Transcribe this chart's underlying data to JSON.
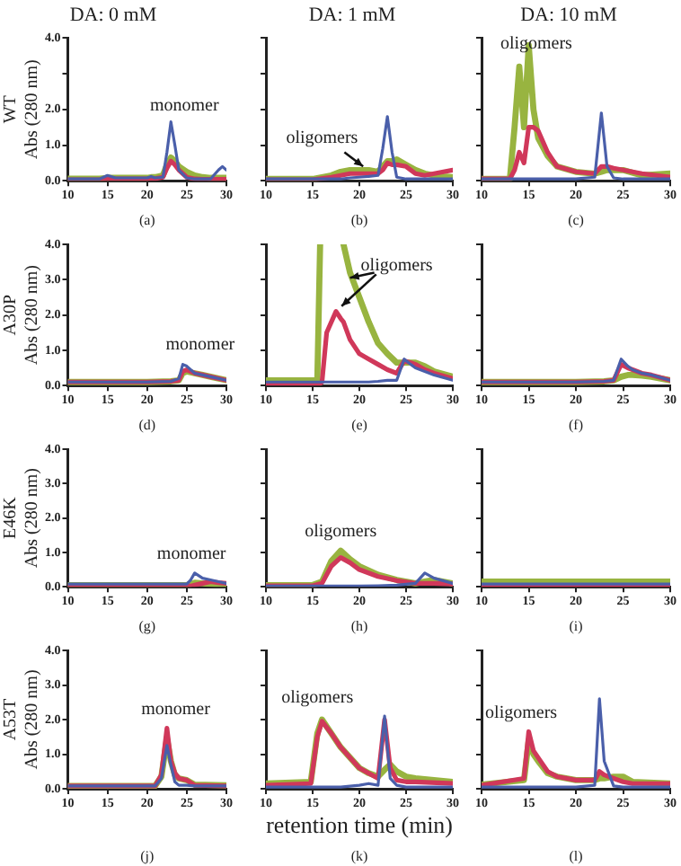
{
  "chart_data": [
    {
      "type": "line",
      "title": "DA: 0 mM",
      "ylabel": "WT\nAbs (280 nm)",
      "annotations": [
        "monomer",
        "(a)"
      ],
      "xlim": [
        10,
        30
      ],
      "ylim": [
        0,
        4
      ],
      "xticks": [
        10,
        15,
        20,
        25,
        30
      ],
      "yticks": [
        {
          "value": 0,
          "label": "0.0"
        },
        {
          "value": 1,
          "label": "1.0"
        },
        {
          "value": 2,
          "label": "2.0"
        },
        {
          "value": 3,
          "label": null
        },
        {
          "value": 4,
          "label": "4.0"
        }
      ],
      "grid": false,
      "legend": false,
      "x": [
        10,
        14,
        15,
        16,
        20,
        20.5,
        21,
        22,
        22.5,
        23,
        23.5,
        24,
        25,
        26,
        27,
        28,
        29,
        29.5,
        30
      ],
      "series": [
        {
          "color": "#4a5faa",
          "values": [
            0.05,
            0.05,
            0.15,
            0.08,
            0.08,
            0.12,
            0.08,
            0.1,
            0.8,
            1.65,
            1.0,
            0.3,
            0.08,
            0.05,
            0.05,
            0.05,
            0.3,
            0.4,
            0.3
          ]
        },
        {
          "color": "#d0385a",
          "values": [
            0.03,
            0.03,
            0.05,
            0.05,
            0.05,
            0.06,
            0.06,
            0.1,
            0.35,
            0.55,
            0.45,
            0.3,
            0.1,
            0.05,
            0.04,
            0.04,
            0.04,
            0.04,
            0.04
          ]
        },
        {
          "color": "#98b440",
          "values": [
            0.06,
            0.06,
            0.08,
            0.08,
            0.08,
            0.1,
            0.1,
            0.15,
            0.45,
            0.65,
            0.55,
            0.4,
            0.25,
            0.15,
            0.1,
            0.08,
            0.08,
            0.08,
            0.08
          ]
        }
      ]
    },
    {
      "type": "line",
      "title": "DA: 1 mM",
      "annotations": [
        "oligomers",
        "(b)"
      ],
      "xlim": [
        10,
        30
      ],
      "ylim": [
        0,
        4
      ],
      "xticks": [
        10,
        15,
        20,
        25,
        30
      ],
      "yticks": [
        0,
        1,
        2,
        3,
        4
      ],
      "tick_labels": "x",
      "grid": false,
      "legend": false,
      "x": [
        10,
        15,
        17,
        18,
        19,
        20,
        21,
        22,
        22.5,
        23,
        23.5,
        24,
        25,
        26,
        27,
        28,
        29,
        30
      ],
      "series": [
        {
          "color": "#4a5faa",
          "values": [
            0.05,
            0.05,
            0.05,
            0.05,
            0.08,
            0.1,
            0.12,
            0.15,
            0.9,
            1.8,
            0.8,
            0.1,
            0.05,
            0.05,
            0.05,
            0.05,
            0.05,
            0.05
          ]
        },
        {
          "color": "#d0385a",
          "values": [
            0.03,
            0.03,
            0.1,
            0.15,
            0.2,
            0.2,
            0.2,
            0.2,
            0.3,
            0.5,
            0.45,
            0.45,
            0.4,
            0.2,
            0.15,
            0.2,
            0.25,
            0.3
          ]
        },
        {
          "color": "#98b440",
          "values": [
            0.05,
            0.05,
            0.15,
            0.25,
            0.3,
            0.3,
            0.3,
            0.25,
            0.4,
            0.55,
            0.55,
            0.6,
            0.45,
            0.3,
            0.2,
            0.15,
            0.12,
            0.1
          ]
        }
      ]
    },
    {
      "type": "line",
      "title": "DA: 10 mM",
      "annotations": [
        "oligomers",
        "(c)"
      ],
      "xlim": [
        10,
        30
      ],
      "ylim": [
        0,
        4
      ],
      "xticks": [
        10,
        15,
        20,
        25,
        30
      ],
      "yticks": [
        0,
        1,
        2,
        3,
        4
      ],
      "tick_labels": "x",
      "grid": false,
      "legend": false,
      "x": [
        10,
        13,
        13.5,
        14,
        14.5,
        15,
        15.5,
        16,
        17,
        18,
        20,
        22,
        22.7,
        23.3,
        24,
        25,
        27,
        30
      ],
      "series": [
        {
          "color": "#4a5faa",
          "values": [
            0.05,
            0.05,
            0.05,
            0.05,
            0.05,
            0.05,
            0.05,
            0.05,
            0.05,
            0.05,
            0.05,
            0.1,
            1.9,
            0.4,
            0.08,
            0.05,
            0.05,
            0.05
          ]
        },
        {
          "color": "#d0385a",
          "values": [
            0.05,
            0.05,
            0.3,
            0.8,
            0.5,
            1.5,
            1.5,
            1.4,
            0.8,
            0.4,
            0.25,
            0.2,
            0.4,
            0.4,
            0.35,
            0.3,
            0.2,
            0.1
          ]
        },
        {
          "color": "#98b440",
          "values": [
            0.05,
            0.05,
            1.5,
            3.2,
            1.5,
            3.8,
            2.0,
            1.2,
            0.7,
            0.4,
            0.25,
            0.2,
            0.25,
            0.3,
            0.3,
            0.3,
            0.15,
            0.2
          ]
        }
      ]
    },
    {
      "type": "line",
      "ylabel": "A30P\nAbs (280 nm)",
      "annotations": [
        "monomer",
        "(d)"
      ],
      "xlim": [
        10,
        30
      ],
      "ylim": [
        0,
        4
      ],
      "xticks": [
        10,
        15,
        20,
        25,
        30
      ],
      "yticks": [
        {
          "value": 0,
          "label": "0.0"
        },
        {
          "value": 1,
          "label": "1.0"
        },
        {
          "value": 2,
          "label": "2.0"
        },
        {
          "value": 3,
          "label": "3.0"
        },
        {
          "value": 4,
          "label": "4.0"
        }
      ],
      "grid": false,
      "legend": false,
      "x": [
        10,
        20,
        23,
        24,
        24.5,
        25,
        26,
        27,
        28,
        30
      ],
      "series": [
        {
          "color": "#4a5faa",
          "values": [
            0.1,
            0.1,
            0.12,
            0.2,
            0.6,
            0.55,
            0.35,
            0.3,
            0.25,
            0.15
          ]
        },
        {
          "color": "#d0385a",
          "values": [
            0.1,
            0.1,
            0.12,
            0.15,
            0.4,
            0.45,
            0.35,
            0.3,
            0.25,
            0.15
          ]
        },
        {
          "color": "#98b440",
          "values": [
            0.1,
            0.1,
            0.12,
            0.15,
            0.35,
            0.4,
            0.35,
            0.3,
            0.25,
            0.15
          ]
        }
      ]
    },
    {
      "type": "line",
      "annotations": [
        "oligomers",
        "(e)"
      ],
      "xlim": [
        10,
        30
      ],
      "ylim": [
        0,
        4
      ],
      "xticks": [
        10,
        15,
        20,
        25,
        30
      ],
      "yticks": [
        0,
        1,
        2,
        3,
        4
      ],
      "tick_labels": "x",
      "grid": false,
      "legend": false,
      "x": [
        10,
        15.5,
        15.8,
        16,
        16.5,
        17.5,
        18,
        18.3,
        19,
        20,
        21,
        22,
        23,
        24,
        24.8,
        25.5,
        26,
        27,
        28,
        30
      ],
      "series": [
        {
          "color": "#4a5faa",
          "values": [
            0.1,
            0.1,
            0.1,
            0.1,
            0.1,
            0.1,
            0.1,
            0.1,
            0.1,
            0.1,
            0.1,
            0.12,
            0.15,
            0.15,
            0.75,
            0.6,
            0.5,
            0.4,
            0.3,
            0.15
          ]
        },
        {
          "color": "#d0385a",
          "values": [
            0.05,
            0.05,
            0.05,
            0.1,
            1.5,
            2.1,
            1.9,
            1.8,
            1.3,
            0.9,
            0.75,
            0.6,
            0.45,
            0.35,
            0.7,
            0.65,
            0.6,
            0.45,
            0.35,
            0.2
          ]
        },
        {
          "color": "#98b440",
          "values": [
            0.15,
            0.15,
            4.0,
            null,
            null,
            null,
            null,
            4.0,
            3.2,
            2.5,
            1.8,
            1.2,
            0.9,
            0.65,
            0.65,
            0.65,
            0.65,
            0.55,
            0.4,
            0.25
          ]
        }
      ]
    },
    {
      "type": "line",
      "annotations": [
        "(f)"
      ],
      "xlim": [
        10,
        30
      ],
      "ylim": [
        0,
        4
      ],
      "xticks": [
        10,
        15,
        20,
        25,
        30
      ],
      "yticks": [
        0,
        1,
        2,
        3,
        4
      ],
      "tick_labels": "x",
      "grid": false,
      "legend": false,
      "x": [
        10,
        20,
        23,
        24,
        24.8,
        25.5,
        26,
        27,
        28,
        30
      ],
      "series": [
        {
          "color": "#4a5faa",
          "values": [
            0.1,
            0.1,
            0.12,
            0.15,
            0.75,
            0.55,
            0.45,
            0.35,
            0.3,
            0.15
          ]
        },
        {
          "color": "#d0385a",
          "values": [
            0.1,
            0.1,
            0.12,
            0.15,
            0.6,
            0.5,
            0.45,
            0.35,
            0.3,
            0.15
          ]
        },
        {
          "color": "#98b440",
          "values": [
            0.1,
            0.1,
            0.12,
            0.15,
            0.25,
            0.3,
            0.3,
            0.28,
            0.25,
            0.15
          ]
        }
      ]
    },
    {
      "type": "line",
      "ylabel": "E46K\nAbs (280 nm)",
      "annotations": [
        "monomer",
        "(g)"
      ],
      "xlim": [
        10,
        30
      ],
      "ylim": [
        0,
        4
      ],
      "xticks": [
        10,
        15,
        20,
        25,
        30
      ],
      "yticks": [
        {
          "value": 0,
          "label": "0.0"
        },
        {
          "value": 1,
          "label": "1.0"
        },
        {
          "value": 2,
          "label": "2.0"
        },
        {
          "value": 3,
          "label": "3.0"
        },
        {
          "value": 4,
          "label": "4.0"
        }
      ],
      "grid": false,
      "legend": false,
      "x": [
        10,
        25,
        25.5,
        26,
        27,
        28,
        29,
        30
      ],
      "series": [
        {
          "color": "#4a5faa",
          "values": [
            0.08,
            0.08,
            0.2,
            0.4,
            0.25,
            0.2,
            0.15,
            0.1
          ]
        },
        {
          "color": "#d0385a",
          "values": [
            0.02,
            0.02,
            0.02,
            0.05,
            0.1,
            0.15,
            0.12,
            0.1
          ]
        },
        {
          "color": "#98b440",
          "values": [
            0.05,
            0.05,
            0.08,
            0.12,
            0.1,
            0.08,
            0.06,
            0.05
          ]
        }
      ]
    },
    {
      "type": "line",
      "annotations": [
        "oligomers",
        "(h)"
      ],
      "xlim": [
        10,
        30
      ],
      "ylim": [
        0,
        4
      ],
      "xticks": [
        10,
        15,
        20,
        25,
        30
      ],
      "yticks": [
        0,
        1,
        2,
        3,
        4
      ],
      "tick_labels": "x",
      "grid": false,
      "legend": false,
      "x": [
        10,
        15,
        16,
        17,
        18,
        19,
        20,
        22,
        24,
        26,
        27,
        28,
        30
      ],
      "series": [
        {
          "color": "#4a5faa",
          "values": [
            0.02,
            0.02,
            0.02,
            0.02,
            0.02,
            0.02,
            0.02,
            0.03,
            0.05,
            0.1,
            0.4,
            0.25,
            0.1
          ]
        },
        {
          "color": "#d0385a",
          "values": [
            0.03,
            0.03,
            0.1,
            0.6,
            0.85,
            0.7,
            0.5,
            0.3,
            0.18,
            0.1,
            0.1,
            0.1,
            0.08
          ]
        },
        {
          "color": "#98b440",
          "values": [
            0.05,
            0.05,
            0.15,
            0.75,
            1.05,
            0.8,
            0.6,
            0.35,
            0.2,
            0.1,
            0.15,
            0.2,
            0.1
          ]
        }
      ]
    },
    {
      "type": "line",
      "annotations": [
        "(i)"
      ],
      "xlim": [
        10,
        30
      ],
      "ylim": [
        0,
        4
      ],
      "xticks": [
        10,
        15,
        20,
        25,
        30
      ],
      "yticks": [
        0,
        1,
        2,
        3,
        4
      ],
      "tick_labels": "x",
      "grid": false,
      "legend": false,
      "x": [
        10,
        30
      ],
      "series": [
        {
          "color": "#4a5faa",
          "values": [
            0.08,
            0.08
          ]
        },
        {
          "color": "#d0385a",
          "values": [
            0.02,
            0.02
          ]
        },
        {
          "color": "#98b440",
          "values": [
            0.15,
            0.15
          ]
        }
      ]
    },
    {
      "type": "line",
      "ylabel": "A53T\nAbs (280 nm)",
      "annotations": [
        "monomer",
        "(j)"
      ],
      "xlim": [
        10,
        30
      ],
      "ylim": [
        0,
        4
      ],
      "xticks": [
        10,
        15,
        20,
        25,
        30
      ],
      "yticks": [
        {
          "value": 0,
          "label": "0.0"
        },
        {
          "value": 1,
          "label": "1.0"
        },
        {
          "value": 2,
          "label": "2.0"
        },
        {
          "value": 3,
          "label": "3.0"
        },
        {
          "value": 4,
          "label": "4.0"
        }
      ],
      "grid": false,
      "legend": false,
      "x": [
        10,
        21,
        21.8,
        22.5,
        23,
        23.5,
        24,
        25,
        26,
        30
      ],
      "series": [
        {
          "color": "#4a5faa",
          "values": [
            0.08,
            0.08,
            0.3,
            1.25,
            0.7,
            0.2,
            0.1,
            0.1,
            0.08,
            0.08
          ]
        },
        {
          "color": "#d0385a",
          "values": [
            0.08,
            0.08,
            0.4,
            1.75,
            0.8,
            0.45,
            0.3,
            0.25,
            0.1,
            0.08
          ]
        },
        {
          "color": "#98b440",
          "values": [
            0.08,
            0.08,
            0.35,
            1.45,
            0.8,
            0.4,
            0.3,
            0.25,
            0.12,
            0.1
          ]
        }
      ]
    },
    {
      "type": "line",
      "xlabel": "retention time (min)",
      "annotations": [
        "oligomers",
        "(k)"
      ],
      "xlim": [
        10,
        30
      ],
      "ylim": [
        0,
        4
      ],
      "xticks": [
        10,
        15,
        20,
        25,
        30
      ],
      "yticks": [
        0,
        1,
        2,
        3,
        4
      ],
      "tick_labels": "x",
      "grid": false,
      "legend": false,
      "x": [
        10,
        14.8,
        15.5,
        16,
        17,
        18,
        20,
        21,
        22,
        22.7,
        23.3,
        24,
        25,
        26,
        30
      ],
      "series": [
        {
          "color": "#4a5faa",
          "values": [
            0.05,
            0.05,
            0.05,
            0.05,
            0.05,
            0.05,
            0.1,
            0.15,
            0.1,
            2.1,
            0.3,
            0.1,
            0.05,
            0.05,
            0.05
          ]
        },
        {
          "color": "#d0385a",
          "values": [
            0.1,
            0.15,
            1.5,
            1.95,
            1.6,
            1.2,
            0.6,
            0.45,
            0.3,
            2.0,
            0.6,
            0.25,
            0.2,
            0.2,
            0.15
          ]
        },
        {
          "color": "#98b440",
          "values": [
            0.15,
            0.2,
            1.6,
            2.0,
            1.6,
            1.2,
            0.6,
            0.45,
            0.35,
            0.55,
            0.7,
            0.5,
            0.35,
            0.3,
            0.2
          ]
        }
      ]
    },
    {
      "type": "line",
      "annotations": [
        "oligomers",
        "(l)"
      ],
      "xlim": [
        10,
        30
      ],
      "ylim": [
        0,
        4
      ],
      "xticks": [
        10,
        15,
        20,
        25,
        30
      ],
      "yticks": [
        0,
        1,
        2,
        3,
        4
      ],
      "tick_labels": "x",
      "grid": false,
      "legend": false,
      "x": [
        10,
        14.5,
        15,
        15.5,
        16,
        17,
        18,
        20,
        22,
        22.5,
        23,
        24,
        25,
        26,
        30
      ],
      "series": [
        {
          "color": "#4a5faa",
          "values": [
            0.05,
            0.05,
            0.05,
            0.05,
            0.05,
            0.05,
            0.05,
            0.05,
            0.1,
            2.6,
            0.8,
            0.08,
            0.05,
            0.05,
            0.05
          ]
        },
        {
          "color": "#d0385a",
          "values": [
            0.1,
            0.3,
            1.65,
            1.1,
            0.9,
            0.5,
            0.35,
            0.25,
            0.25,
            0.5,
            0.4,
            0.3,
            0.2,
            0.15,
            0.15
          ]
        },
        {
          "color": "#98b440",
          "values": [
            0.12,
            0.25,
            1.4,
            1.0,
            0.8,
            0.45,
            0.35,
            0.25,
            0.25,
            0.3,
            0.3,
            0.35,
            0.35,
            0.2,
            0.15
          ]
        }
      ]
    }
  ]
}
